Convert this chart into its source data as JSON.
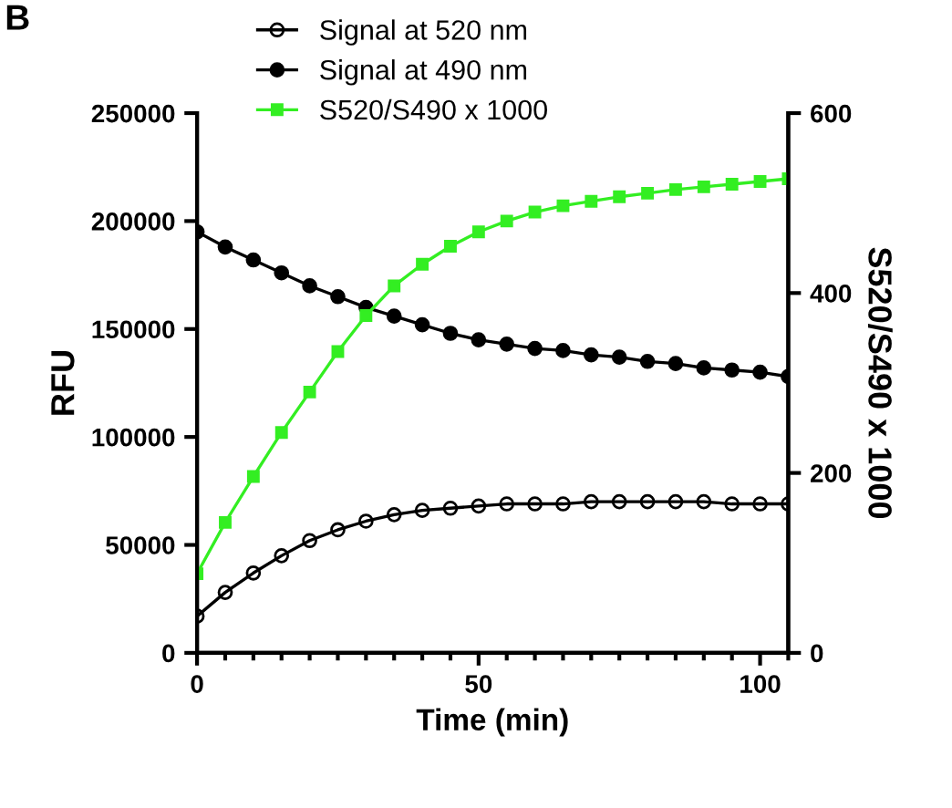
{
  "chart_data": {
    "type": "line",
    "xlabel": "Time (min)",
    "ylabel": "RFU",
    "y2label": "S520/S490 x 1000",
    "x": [
      0,
      5,
      10,
      15,
      20,
      25,
      30,
      35,
      40,
      45,
      50,
      55,
      60,
      65,
      70,
      75,
      80,
      85,
      90,
      95,
      100,
      105
    ],
    "series": [
      {
        "name": "Signal at 520 nm",
        "color": "#000000",
        "marker": "circle",
        "values": [
          17000,
          28000,
          37000,
          45000,
          52000,
          57000,
          61000,
          64000,
          66000,
          67000,
          68000,
          69000,
          69000,
          69000,
          70000,
          70000,
          70000,
          70000,
          70000,
          69000,
          69000,
          69000
        ]
      },
      {
        "name": "Signal at 490 nm",
        "color": "#000000",
        "marker": "circle",
        "values": [
          195000,
          188000,
          182000,
          176000,
          170000,
          165000,
          160000,
          156000,
          152000,
          148000,
          145000,
          143000,
          141000,
          140000,
          138000,
          137000,
          135000,
          134000,
          132000,
          131000,
          130000,
          128000
        ]
      },
      {
        "name": "S520/S490 x 1000",
        "color": "#33ee22",
        "marker": "square",
        "axis": "y2",
        "values": [
          88,
          145,
          196,
          245,
          290,
          335,
          375,
          408,
          432,
          452,
          468,
          480,
          490,
          497,
          502,
          507,
          511,
          515,
          518,
          521,
          524,
          527
        ]
      }
    ],
    "xlim": [
      0,
      105
    ],
    "xticks": [
      0,
      50,
      100
    ],
    "ylim": [
      0,
      250000
    ],
    "yticks": [
      0,
      50000,
      100000,
      150000,
      200000,
      250000
    ],
    "y2lim": [
      0,
      600
    ],
    "y2ticks": [
      0,
      200,
      400,
      600
    ],
    "legend": "top left",
    "grid": false,
    "annotations": [
      "B"
    ]
  }
}
